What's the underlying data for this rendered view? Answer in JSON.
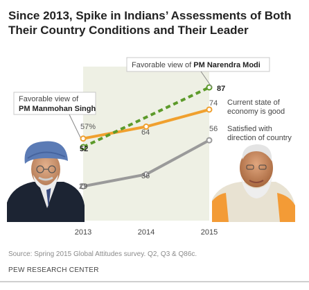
{
  "title": "Since 2013, Spike in Indians’ Assessments of Both Their Country Conditions and Their Leader",
  "chart_data": {
    "type": "line",
    "x": [
      "2013",
      "2014",
      "2015"
    ],
    "ylim": [
      0,
      100
    ],
    "series": [
      {
        "name": "Current state of economy is good",
        "values": [
          57,
          64,
          74
        ],
        "labels": [
          "57%",
          "64",
          "74"
        ],
        "color": "#f0a02e",
        "style": "solid"
      },
      {
        "name": "Satisfied with direction of country",
        "values": [
          29,
          36,
          56
        ],
        "labels": [
          "29",
          "36",
          "56"
        ],
        "color": "#9a9a9a",
        "style": "solid"
      },
      {
        "name": "Favorable view of leader",
        "values": [
          52,
          null,
          87
        ],
        "labels": [
          "52",
          "",
          "87"
        ],
        "color": "#5c9a2a",
        "style": "dashed"
      }
    ],
    "series_labels": {
      "economy": [
        "Current state of",
        "economy is good"
      ],
      "direction": [
        "Satisfied with",
        "direction of country"
      ]
    },
    "callouts": {
      "singh": {
        "line1": "Favorable view of",
        "line2": "PM Manmohan Singh"
      },
      "modi": {
        "prefix": "Favorable view of ",
        "name": "PM Narendra Modi"
      }
    },
    "shade_color": "#eef0e4"
  },
  "footer": {
    "source": "Source: Spring 2015 Global Attitudes survey. Q2, Q3 & Q86c.",
    "org": "PEW RESEARCH CENTER"
  }
}
